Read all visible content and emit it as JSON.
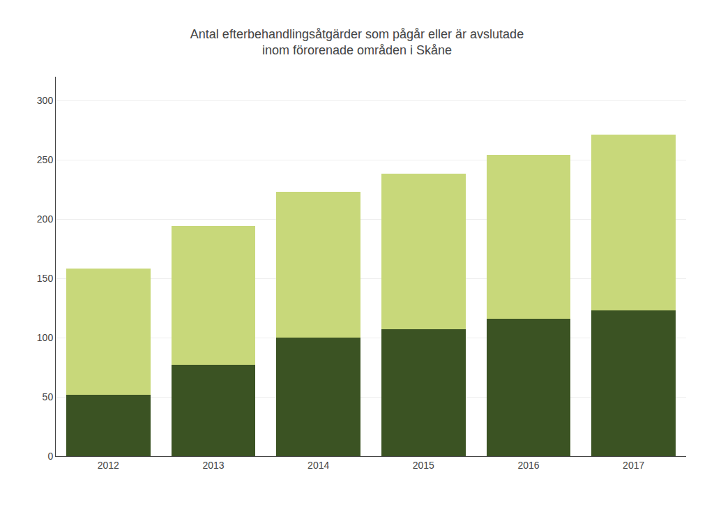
{
  "chart_data": {
    "type": "bar",
    "title": "Antal efterbehandlingsåtgärder som pågår eller är avslutade\ninom förorenade områden i Skåne",
    "categories": [
      "2012",
      "2013",
      "2014",
      "2015",
      "2016",
      "2017"
    ],
    "series": [
      {
        "color": "#3b5323",
        "values": [
          52,
          77,
          100,
          107,
          116,
          123
        ]
      },
      {
        "color": "#c8d87a",
        "values": [
          106,
          117,
          123,
          131,
          138,
          148
        ]
      }
    ],
    "stacked": true,
    "ylim": [
      0,
      320
    ],
    "yticks": [
      0,
      50,
      100,
      150,
      200,
      250,
      300
    ],
    "grid": true
  }
}
